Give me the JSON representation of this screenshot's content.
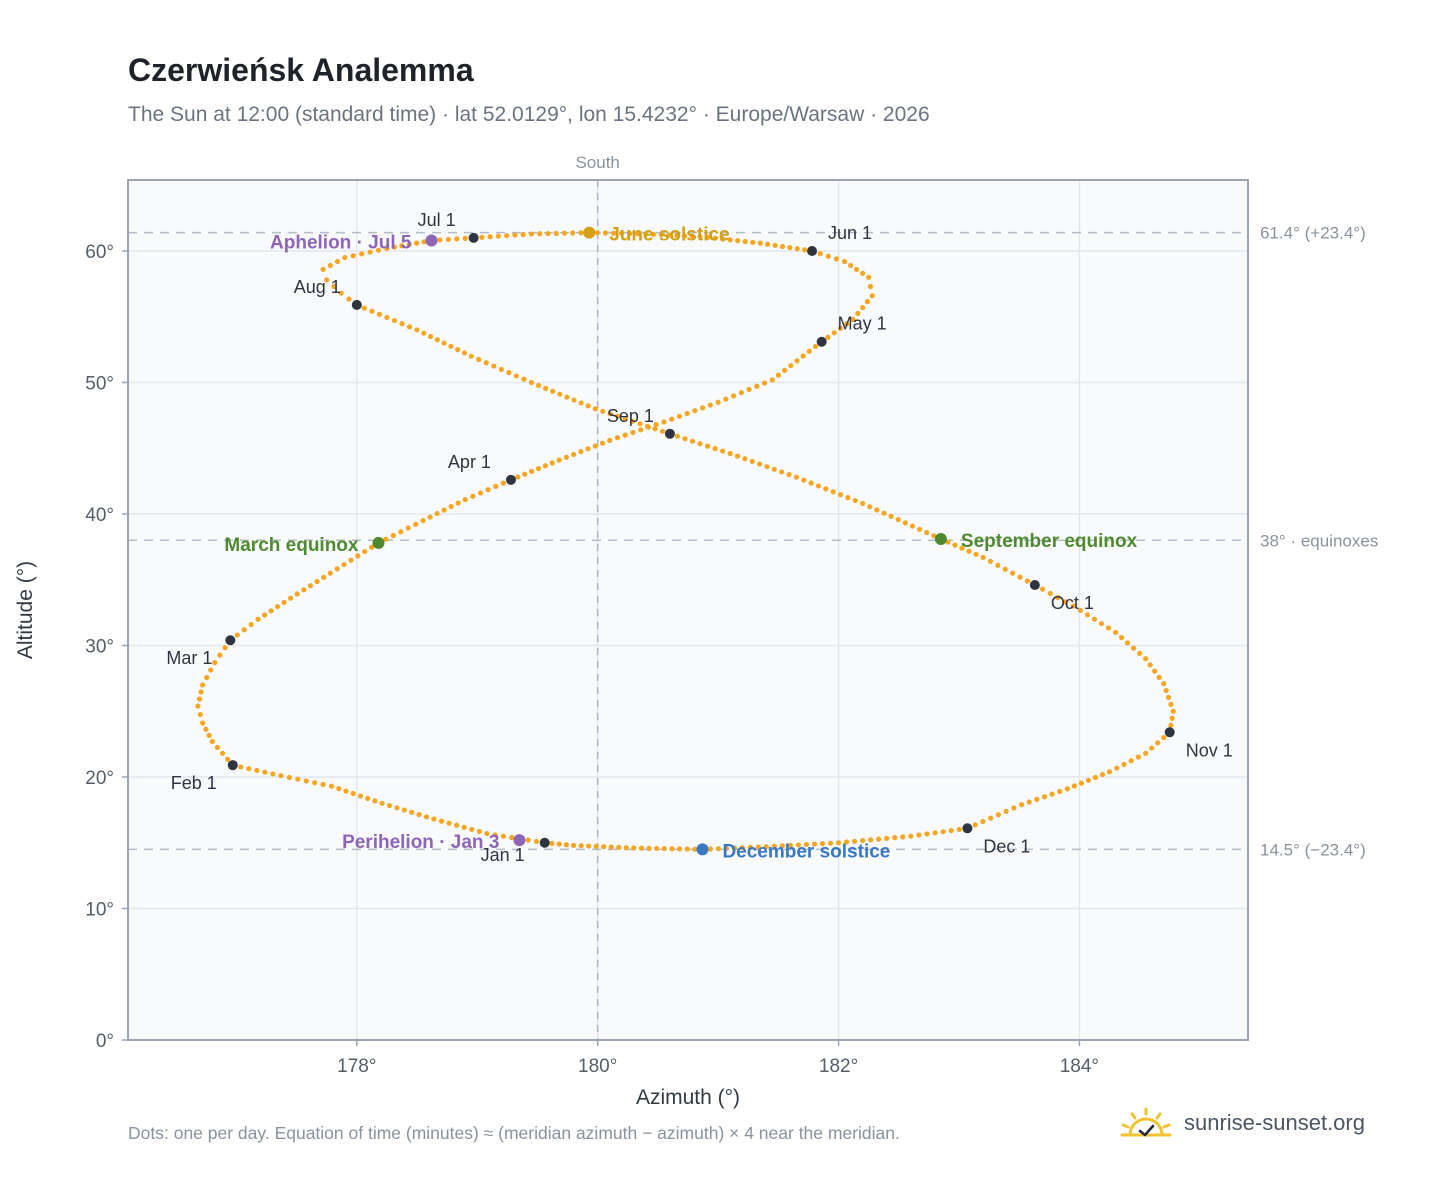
{
  "header": {
    "title": "Czerwieńsk Analemma",
    "subtitle": "The Sun at 12:00 (standard time) · lat 52.0129°, lon 15.4232° · Europe/Warsaw · 2026"
  },
  "footer": {
    "note": "Dots: one per day. Equation of time (minutes) ≈ (meridian azimuth − azimuth) × 4 near the meridian.",
    "brand": "sunrise-sunset.org",
    "brand_icon": "sun-check-icon",
    "brand_color": "#f2c230"
  },
  "chart_data": {
    "type": "scatter",
    "xlabel": "Azimuth (°)",
    "ylabel": "Altitude (°)",
    "xlim": [
      176.1,
      185.4
    ],
    "ylim": [
      0,
      65.4
    ],
    "x_ticks": [
      {
        "value": 178,
        "label": "178°"
      },
      {
        "value": 180,
        "label": "180°"
      },
      {
        "value": 182,
        "label": "182°"
      },
      {
        "value": 184,
        "label": "184°"
      }
    ],
    "y_ticks": [
      {
        "value": 0,
        "label": "0°"
      },
      {
        "value": 10,
        "label": "10°"
      },
      {
        "value": 20,
        "label": "20°"
      },
      {
        "value": 30,
        "label": "30°"
      },
      {
        "value": 40,
        "label": "40°"
      },
      {
        "value": 50,
        "label": "50°"
      },
      {
        "value": 60,
        "label": "60°"
      }
    ],
    "grid": true,
    "meridian": {
      "azimuth": 180,
      "label": "South"
    },
    "reference_lines": [
      {
        "altitude": 61.4,
        "label": "61.4° (+23.4°)"
      },
      {
        "altitude": 38.0,
        "label": "38° · equinoxes"
      },
      {
        "altitude": 14.5,
        "label": "14.5° (−23.4°)"
      }
    ],
    "series": [
      {
        "color": "#f5a623",
        "points": [
          [
            179.56,
            15.0
          ],
          [
            179.08,
            15.7
          ],
          [
            178.64,
            16.8
          ],
          [
            178.21,
            18.0
          ],
          [
            177.79,
            19.3
          ],
          [
            177.37,
            20.1
          ],
          [
            176.97,
            20.9
          ],
          [
            176.8,
            22.7
          ],
          [
            176.72,
            24.1
          ],
          [
            176.68,
            25.4
          ],
          [
            176.72,
            27.0
          ],
          [
            176.82,
            28.7
          ],
          [
            176.95,
            30.4
          ],
          [
            177.18,
            32.0
          ],
          [
            177.45,
            33.6
          ],
          [
            177.78,
            35.5
          ],
          [
            178.18,
            37.8
          ],
          [
            178.55,
            39.5
          ],
          [
            178.9,
            41.1
          ],
          [
            179.28,
            42.6
          ],
          [
            179.68,
            44.1
          ],
          [
            180.1,
            45.6
          ],
          [
            180.55,
            47.0
          ],
          [
            181.0,
            48.5
          ],
          [
            181.45,
            50.2
          ],
          [
            181.86,
            53.1
          ],
          [
            182.12,
            54.8
          ],
          [
            182.28,
            56.6
          ],
          [
            182.25,
            58.0
          ],
          [
            182.05,
            59.2
          ],
          [
            181.78,
            60.0
          ],
          [
            181.35,
            60.6
          ],
          [
            180.85,
            61.1
          ],
          [
            180.4,
            61.3
          ],
          [
            179.93,
            61.4
          ],
          [
            179.45,
            61.3
          ],
          [
            178.97,
            61.0
          ],
          [
            178.62,
            60.8
          ],
          [
            178.25,
            60.2
          ],
          [
            177.9,
            59.5
          ],
          [
            177.72,
            58.6
          ],
          [
            177.75,
            57.8
          ],
          [
            177.87,
            56.8
          ],
          [
            178.0,
            55.9
          ],
          [
            178.5,
            54.0
          ],
          [
            178.95,
            52.0
          ],
          [
            179.45,
            50.0
          ],
          [
            179.98,
            48.0
          ],
          [
            180.6,
            46.1
          ],
          [
            181.1,
            44.6
          ],
          [
            181.65,
            42.8
          ],
          [
            182.2,
            40.8
          ],
          [
            182.85,
            38.1
          ],
          [
            183.2,
            36.7
          ],
          [
            183.63,
            34.6
          ],
          [
            183.95,
            33.0
          ],
          [
            184.3,
            31.0
          ],
          [
            184.55,
            29.0
          ],
          [
            184.7,
            27.1
          ],
          [
            184.78,
            25.0
          ],
          [
            184.75,
            23.4
          ],
          [
            184.55,
            21.8
          ],
          [
            184.25,
            20.4
          ],
          [
            183.9,
            19.1
          ],
          [
            183.52,
            17.9
          ],
          [
            183.07,
            16.1
          ],
          [
            182.6,
            15.5
          ],
          [
            182.0,
            15.0
          ],
          [
            181.4,
            14.7
          ],
          [
            180.87,
            14.5
          ],
          [
            180.3,
            14.6
          ],
          [
            179.8,
            14.8
          ],
          [
            179.56,
            15.0
          ]
        ]
      }
    ],
    "month_markers": [
      {
        "label": "Jan 1",
        "az": 179.56,
        "alt": 15.0,
        "anchor": "middle",
        "dx": -42,
        "dy": 18
      },
      {
        "label": "Feb 1",
        "az": 176.97,
        "alt": 20.9,
        "anchor": "end",
        "dx": -16,
        "dy": 24
      },
      {
        "label": "Mar 1",
        "az": 176.95,
        "alt": 30.4,
        "anchor": "end",
        "dx": -18,
        "dy": 24
      },
      {
        "label": "Apr 1",
        "az": 179.28,
        "alt": 42.6,
        "anchor": "end",
        "dx": -20,
        "dy": -12
      },
      {
        "label": "May 1",
        "az": 181.86,
        "alt": 53.1,
        "anchor": "start",
        "dx": 16,
        "dy": -12
      },
      {
        "label": "Jun 1",
        "az": 181.78,
        "alt": 60.0,
        "anchor": "start",
        "dx": 16,
        "dy": -12
      },
      {
        "label": "Jul 1",
        "az": 178.97,
        "alt": 61.0,
        "anchor": "end",
        "dx": -18,
        "dy": -12
      },
      {
        "label": "Aug 1",
        "az": 178.0,
        "alt": 55.9,
        "anchor": "end",
        "dx": -16,
        "dy": -12
      },
      {
        "label": "Sep 1",
        "az": 180.6,
        "alt": 46.1,
        "anchor": "end",
        "dx": -16,
        "dy": -12
      },
      {
        "label": "Oct 1",
        "az": 183.63,
        "alt": 34.6,
        "anchor": "start",
        "dx": 16,
        "dy": 24
      },
      {
        "label": "Nov 1",
        "az": 184.75,
        "alt": 23.4,
        "anchor": "start",
        "dx": 16,
        "dy": 24
      },
      {
        "label": "Dec 1",
        "az": 183.07,
        "alt": 16.1,
        "anchor": "start",
        "dx": 16,
        "dy": 24
      }
    ],
    "events": [
      {
        "label": "June solstice",
        "az": 179.93,
        "alt": 61.4,
        "color": "#d4a016",
        "anchor": "start",
        "dx": 20,
        "dy": 8
      },
      {
        "label": "Aphelion · Jul 5",
        "az": 178.62,
        "alt": 60.8,
        "color": "#8e66b8",
        "anchor": "end",
        "dx": -20,
        "dy": 8
      },
      {
        "label": "March equinox",
        "az": 178.18,
        "alt": 37.8,
        "color": "#4f8a30",
        "anchor": "end",
        "dx": -20,
        "dy": 8
      },
      {
        "label": "September equinox",
        "az": 182.85,
        "alt": 38.1,
        "color": "#4f8a30",
        "anchor": "start",
        "dx": 20,
        "dy": 8
      },
      {
        "label": "Perihelion · Jan 3",
        "az": 179.35,
        "alt": 15.2,
        "color": "#8e66b8",
        "anchor": "end",
        "dx": -20,
        "dy": 8
      },
      {
        "label": "December solstice",
        "az": 180.87,
        "alt": 14.5,
        "color": "#3b78c2",
        "anchor": "start",
        "dx": 20,
        "dy": 8
      }
    ]
  }
}
